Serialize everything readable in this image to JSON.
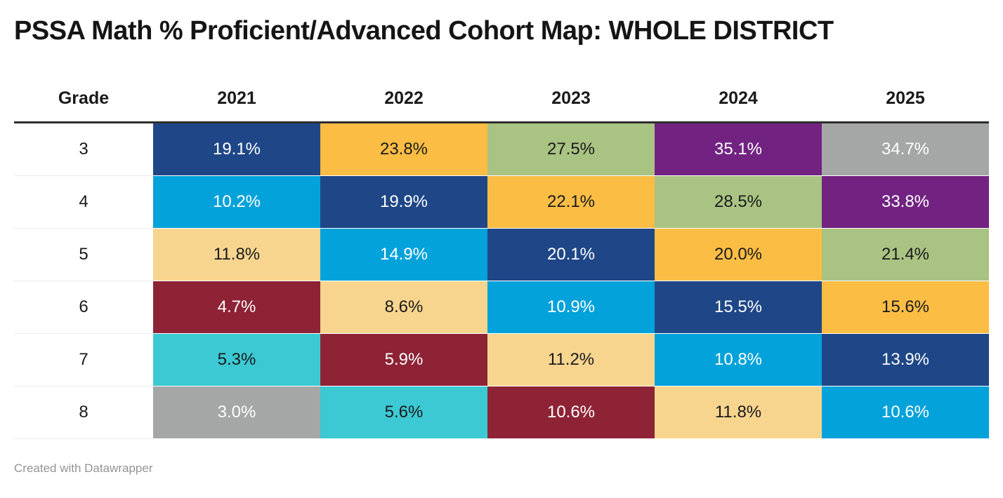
{
  "title": "PSSA Math % Proficient/Advanced Cohort Map: WHOLE DISTRICT",
  "footer": {
    "attribution": "Created with Datawrapper"
  },
  "palette": {
    "dark_blue": "#1f4787",
    "light_blue": "#04a2da",
    "orange": "#fcbd45",
    "tan": "#f8d58f",
    "green": "#a9c383",
    "purple": "#722382",
    "gray": "#a4a7a5",
    "maroon": "#8e2336",
    "turquoise": "#3cc9d3",
    "text_dark": "#1a1a1a",
    "text_light": "#ffffff"
  },
  "chart_data": {
    "type": "heatmap",
    "title": "PSSA Math % Proficient/Advanced Cohort Map: WHOLE DISTRICT",
    "grade_header": "Grade",
    "columns": [
      "2021",
      "2022",
      "2023",
      "2024",
      "2025"
    ],
    "grades": [
      "3",
      "4",
      "5",
      "6",
      "7",
      "8"
    ],
    "values": [
      [
        19.1,
        23.8,
        27.5,
        35.1,
        34.7
      ],
      [
        10.2,
        19.9,
        22.1,
        28.5,
        33.8
      ],
      [
        11.8,
        14.9,
        20.1,
        20.0,
        21.4
      ],
      [
        4.7,
        8.6,
        10.9,
        15.5,
        15.6
      ],
      [
        5.3,
        5.9,
        11.2,
        10.8,
        13.9
      ],
      [
        3.0,
        5.6,
        10.6,
        11.8,
        10.6
      ]
    ],
    "color_encoding": "same color follows each cohort along the diagonal",
    "legend_position": "none",
    "rows": [
      {
        "grade": "3",
        "cells": [
          {
            "v": "19.1%",
            "bg": "#1f4787",
            "fg": "#ffffff"
          },
          {
            "v": "23.8%",
            "bg": "#fcbd45",
            "fg": "#1a1a1a"
          },
          {
            "v": "27.5%",
            "bg": "#a9c383",
            "fg": "#1a1a1a"
          },
          {
            "v": "35.1%",
            "bg": "#722382",
            "fg": "#ffffff"
          },
          {
            "v": "34.7%",
            "bg": "#a4a7a5",
            "fg": "#ffffff"
          }
        ]
      },
      {
        "grade": "4",
        "cells": [
          {
            "v": "10.2%",
            "bg": "#04a2da",
            "fg": "#ffffff"
          },
          {
            "v": "19.9%",
            "bg": "#1f4787",
            "fg": "#ffffff"
          },
          {
            "v": "22.1%",
            "bg": "#fcbd45",
            "fg": "#1a1a1a"
          },
          {
            "v": "28.5%",
            "bg": "#a9c383",
            "fg": "#1a1a1a"
          },
          {
            "v": "33.8%",
            "bg": "#722382",
            "fg": "#ffffff"
          }
        ]
      },
      {
        "grade": "5",
        "cells": [
          {
            "v": "11.8%",
            "bg": "#f8d58f",
            "fg": "#1a1a1a"
          },
          {
            "v": "14.9%",
            "bg": "#04a2da",
            "fg": "#ffffff"
          },
          {
            "v": "20.1%",
            "bg": "#1f4787",
            "fg": "#ffffff"
          },
          {
            "v": "20.0%",
            "bg": "#fcbd45",
            "fg": "#1a1a1a"
          },
          {
            "v": "21.4%",
            "bg": "#a9c383",
            "fg": "#1a1a1a"
          }
        ]
      },
      {
        "grade": "6",
        "cells": [
          {
            "v": "4.7%",
            "bg": "#8e2336",
            "fg": "#ffffff"
          },
          {
            "v": "8.6%",
            "bg": "#f8d58f",
            "fg": "#1a1a1a"
          },
          {
            "v": "10.9%",
            "bg": "#04a2da",
            "fg": "#ffffff"
          },
          {
            "v": "15.5%",
            "bg": "#1f4787",
            "fg": "#ffffff"
          },
          {
            "v": "15.6%",
            "bg": "#fcbd45",
            "fg": "#1a1a1a"
          }
        ]
      },
      {
        "grade": "7",
        "cells": [
          {
            "v": "5.3%",
            "bg": "#3cc9d3",
            "fg": "#1a1a1a"
          },
          {
            "v": "5.9%",
            "bg": "#8e2336",
            "fg": "#ffffff"
          },
          {
            "v": "11.2%",
            "bg": "#f8d58f",
            "fg": "#1a1a1a"
          },
          {
            "v": "10.8%",
            "bg": "#04a2da",
            "fg": "#ffffff"
          },
          {
            "v": "13.9%",
            "bg": "#1f4787",
            "fg": "#ffffff"
          }
        ]
      },
      {
        "grade": "8",
        "cells": [
          {
            "v": "3.0%",
            "bg": "#a4a7a5",
            "fg": "#ffffff"
          },
          {
            "v": "5.6%",
            "bg": "#3cc9d3",
            "fg": "#1a1a1a"
          },
          {
            "v": "10.6%",
            "bg": "#8e2336",
            "fg": "#ffffff"
          },
          {
            "v": "11.8%",
            "bg": "#f8d58f",
            "fg": "#1a1a1a"
          },
          {
            "v": "10.6%",
            "bg": "#04a2da",
            "fg": "#ffffff"
          }
        ]
      }
    ]
  }
}
